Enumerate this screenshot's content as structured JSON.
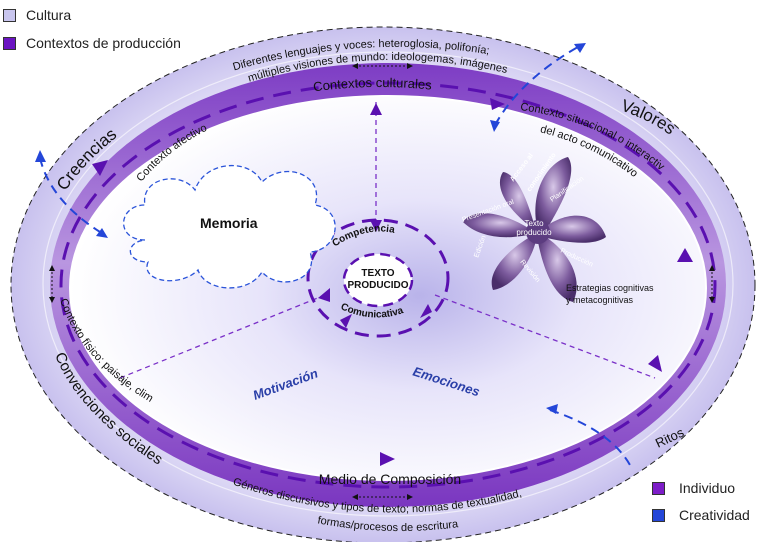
{
  "legend_top": [
    {
      "label": "Cultura",
      "color": "#c9c6ef"
    },
    {
      "label": "Contextos de producción",
      "color": "#6b14c2"
    }
  ],
  "legend_bottom": [
    {
      "label": "Individuo",
      "color": "#7d1dc8"
    },
    {
      "label": "Creatividad",
      "color": "#2446d8"
    }
  ],
  "outer_ring": {
    "top_text_line1": "Diferentes lenguajes y voces: heteroglosia, polifonía;",
    "top_text_line2": "múltiples visiones de mundo: ideologemas, imágenes",
    "creencias": "Creencias",
    "valores": "Valores",
    "ritos": "Ritos",
    "convenciones": "Convenciones sociales",
    "bottom_text_line1": "Géneros discursivos y tipos de texto; normas de textualidad,",
    "bottom_text_line2": "formas/procesos de escritura"
  },
  "inner_ring": {
    "contextos_culturales": "Contextos culturales",
    "contexto_afectivo": "Contexto afectivo",
    "contexto_situacional_line1": "Contexto situacional o interactivo",
    "contexto_situacional_line2": "del acto comunicativo",
    "contexto_fisico": "Contexto físico: paisaje, clima",
    "medio": "Medio de Composición"
  },
  "center": {
    "memoria": "Memoria",
    "competencia": "Competencia",
    "texto_line1": "TEXTO",
    "texto_line2": "PRODUCIDO",
    "comunicativa": "Comunicativa",
    "motivacion": "Motivación",
    "emociones": "Emociones"
  },
  "flower": {
    "center_line1": "Texto",
    "center_line2": "producido",
    "acceso_line1": "Acceso al",
    "acceso_line2": "conocimiento",
    "planificacion": "Planificación",
    "presentacion": "Presentación oral",
    "edicion": "Edición",
    "revision": "Revisión",
    "produccion": "Producción",
    "estrategias_line1": "Estrategias cognitivas",
    "estrategias_line2": "y metacognitivas"
  }
}
